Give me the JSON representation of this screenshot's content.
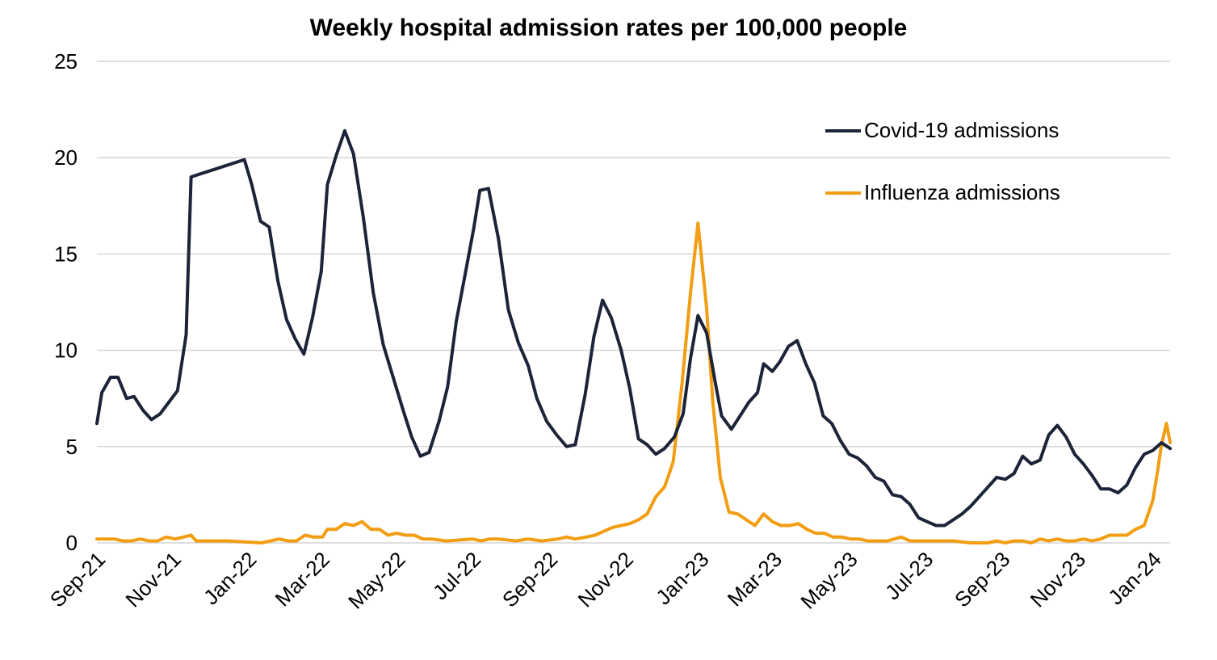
{
  "chart_data": {
    "type": "line",
    "title": "Weekly hospital admission rates per 100,000 people",
    "xlabel": "",
    "ylabel": "",
    "ylim": [
      0,
      25
    ],
    "yticks": [
      0,
      5,
      10,
      15,
      20,
      25
    ],
    "xlim": [
      "2021-09-01",
      "2024-01-15"
    ],
    "xticks": [
      {
        "date": "2021-09-01",
        "label": "Sep-21"
      },
      {
        "date": "2021-11-01",
        "label": "Nov-21"
      },
      {
        "date": "2022-01-01",
        "label": "Jan-22"
      },
      {
        "date": "2022-03-01",
        "label": "Mar-22"
      },
      {
        "date": "2022-05-01",
        "label": "May-22"
      },
      {
        "date": "2022-07-01",
        "label": "Jul-22"
      },
      {
        "date": "2022-09-01",
        "label": "Sep-22"
      },
      {
        "date": "2022-11-01",
        "label": "Nov-22"
      },
      {
        "date": "2023-01-01",
        "label": "Jan-23"
      },
      {
        "date": "2023-03-01",
        "label": "Mar-23"
      },
      {
        "date": "2023-05-01",
        "label": "May-23"
      },
      {
        "date": "2023-07-01",
        "label": "Jul-23"
      },
      {
        "date": "2023-09-01",
        "label": "Sep-23"
      },
      {
        "date": "2023-11-01",
        "label": "Nov-23"
      },
      {
        "date": "2024-01-01",
        "label": "Jan-24"
      }
    ],
    "grid": true,
    "legend_position": "top-right",
    "series": [
      {
        "name": "Covid-19 admissions",
        "color": "#1b2438",
        "points": [
          [
            "2021-09-01",
            6.2
          ],
          [
            "2021-09-05",
            7.8
          ],
          [
            "2021-09-12",
            8.6
          ],
          [
            "2021-09-18",
            8.6
          ],
          [
            "2021-09-25",
            7.5
          ],
          [
            "2021-10-01",
            7.6
          ],
          [
            "2021-10-08",
            6.9
          ],
          [
            "2021-10-15",
            6.4
          ],
          [
            "2021-10-22",
            6.7
          ],
          [
            "2021-10-29",
            7.3
          ],
          [
            "2021-11-05",
            7.9
          ],
          [
            "2021-11-12",
            10.8
          ],
          [
            "2021-11-16",
            19.0
          ],
          [
            "2021-12-29",
            19.9
          ],
          [
            "2022-01-04",
            18.6
          ],
          [
            "2022-01-11",
            16.7
          ],
          [
            "2022-01-18",
            16.4
          ],
          [
            "2022-01-25",
            13.6
          ],
          [
            "2022-02-01",
            11.6
          ],
          [
            "2022-02-08",
            10.6
          ],
          [
            "2022-02-15",
            9.8
          ],
          [
            "2022-02-22",
            11.7
          ],
          [
            "2022-03-01",
            14.1
          ],
          [
            "2022-03-06",
            18.6
          ],
          [
            "2022-03-13",
            20.1
          ],
          [
            "2022-03-20",
            21.4
          ],
          [
            "2022-03-27",
            20.2
          ],
          [
            "2022-04-04",
            16.9
          ],
          [
            "2022-04-12",
            13.0
          ],
          [
            "2022-04-20",
            10.3
          ],
          [
            "2022-04-28",
            8.6
          ],
          [
            "2022-05-06",
            6.9
          ],
          [
            "2022-05-13",
            5.5
          ],
          [
            "2022-05-20",
            4.5
          ],
          [
            "2022-05-27",
            4.7
          ],
          [
            "2022-06-04",
            6.3
          ],
          [
            "2022-06-11",
            8.1
          ],
          [
            "2022-06-18",
            11.5
          ],
          [
            "2022-06-25",
            13.9
          ],
          [
            "2022-07-02",
            16.3
          ],
          [
            "2022-07-07",
            18.3
          ],
          [
            "2022-07-14",
            18.4
          ],
          [
            "2022-07-22",
            15.8
          ],
          [
            "2022-07-30",
            12.1
          ],
          [
            "2022-08-07",
            10.4
          ],
          [
            "2022-08-15",
            9.2
          ],
          [
            "2022-08-22",
            7.5
          ],
          [
            "2022-08-30",
            6.3
          ],
          [
            "2022-09-07",
            5.6
          ],
          [
            "2022-09-15",
            5.0
          ],
          [
            "2022-09-22",
            5.1
          ],
          [
            "2022-09-30",
            7.7
          ],
          [
            "2022-10-07",
            10.7
          ],
          [
            "2022-10-14",
            12.6
          ],
          [
            "2022-10-21",
            11.7
          ],
          [
            "2022-10-29",
            10.0
          ],
          [
            "2022-11-05",
            8.0
          ],
          [
            "2022-11-12",
            5.4
          ],
          [
            "2022-11-19",
            5.1
          ],
          [
            "2022-11-26",
            4.6
          ],
          [
            "2022-12-03",
            4.9
          ],
          [
            "2022-12-11",
            5.5
          ],
          [
            "2022-12-18",
            6.7
          ],
          [
            "2022-12-24",
            9.6
          ],
          [
            "2022-12-30",
            11.8
          ],
          [
            "2023-01-06",
            10.9
          ],
          [
            "2023-01-13",
            8.3
          ],
          [
            "2023-01-18",
            6.6
          ],
          [
            "2023-01-26",
            5.9
          ],
          [
            "2023-02-02",
            6.6
          ],
          [
            "2023-02-09",
            7.3
          ],
          [
            "2023-02-16",
            7.8
          ],
          [
            "2023-02-21",
            9.3
          ],
          [
            "2023-02-28",
            8.9
          ],
          [
            "2023-03-06",
            9.4
          ],
          [
            "2023-03-13",
            10.2
          ],
          [
            "2023-03-20",
            10.5
          ],
          [
            "2023-03-27",
            9.3
          ],
          [
            "2023-04-03",
            8.3
          ],
          [
            "2023-04-10",
            6.6
          ],
          [
            "2023-04-17",
            6.2
          ],
          [
            "2023-04-24",
            5.3
          ],
          [
            "2023-05-01",
            4.6
          ],
          [
            "2023-05-08",
            4.4
          ],
          [
            "2023-05-15",
            4.0
          ],
          [
            "2023-05-22",
            3.4
          ],
          [
            "2023-05-29",
            3.2
          ],
          [
            "2023-06-05",
            2.5
          ],
          [
            "2023-06-12",
            2.4
          ],
          [
            "2023-06-19",
            2.0
          ],
          [
            "2023-06-26",
            1.3
          ],
          [
            "2023-07-03",
            1.1
          ],
          [
            "2023-07-10",
            0.9
          ],
          [
            "2023-07-17",
            0.9
          ],
          [
            "2023-07-24",
            1.2
          ],
          [
            "2023-07-31",
            1.5
          ],
          [
            "2023-08-07",
            1.9
          ],
          [
            "2023-08-14",
            2.4
          ],
          [
            "2023-08-21",
            2.9
          ],
          [
            "2023-08-28",
            3.4
          ],
          [
            "2023-09-04",
            3.3
          ],
          [
            "2023-09-11",
            3.6
          ],
          [
            "2023-09-18",
            4.5
          ],
          [
            "2023-09-25",
            4.1
          ],
          [
            "2023-10-02",
            4.3
          ],
          [
            "2023-10-09",
            5.6
          ],
          [
            "2023-10-16",
            6.1
          ],
          [
            "2023-10-23",
            5.5
          ],
          [
            "2023-10-30",
            4.6
          ],
          [
            "2023-11-06",
            4.1
          ],
          [
            "2023-11-13",
            3.5
          ],
          [
            "2023-11-20",
            2.8
          ],
          [
            "2023-11-27",
            2.8
          ],
          [
            "2023-12-04",
            2.6
          ],
          [
            "2023-12-11",
            3.0
          ],
          [
            "2023-12-18",
            3.9
          ],
          [
            "2023-12-25",
            4.6
          ],
          [
            "2024-01-01",
            4.8
          ],
          [
            "2024-01-08",
            5.2
          ],
          [
            "2024-01-15",
            4.9
          ]
        ]
      },
      {
        "name": "Influenza admissions",
        "color": "#f29d12",
        "points": [
          [
            "2021-09-01",
            0.2
          ],
          [
            "2021-09-08",
            0.2
          ],
          [
            "2021-09-15",
            0.2
          ],
          [
            "2021-09-22",
            0.1
          ],
          [
            "2021-09-29",
            0.1
          ],
          [
            "2021-10-06",
            0.2
          ],
          [
            "2021-10-13",
            0.1
          ],
          [
            "2021-10-20",
            0.1
          ],
          [
            "2021-10-27",
            0.3
          ],
          [
            "2021-11-03",
            0.2
          ],
          [
            "2021-11-10",
            0.3
          ],
          [
            "2021-11-16",
            0.4
          ],
          [
            "2021-11-20",
            0.1
          ],
          [
            "2021-12-15",
            0.1
          ],
          [
            "2022-01-12",
            0.0
          ],
          [
            "2022-01-26",
            0.2
          ],
          [
            "2022-02-02",
            0.1
          ],
          [
            "2022-02-09",
            0.1
          ],
          [
            "2022-02-16",
            0.4
          ],
          [
            "2022-02-23",
            0.3
          ],
          [
            "2022-03-02",
            0.3
          ],
          [
            "2022-03-06",
            0.7
          ],
          [
            "2022-03-13",
            0.7
          ],
          [
            "2022-03-20",
            1.0
          ],
          [
            "2022-03-27",
            0.9
          ],
          [
            "2022-04-03",
            1.1
          ],
          [
            "2022-04-10",
            0.7
          ],
          [
            "2022-04-17",
            0.7
          ],
          [
            "2022-04-24",
            0.4
          ],
          [
            "2022-05-01",
            0.5
          ],
          [
            "2022-05-08",
            0.4
          ],
          [
            "2022-05-15",
            0.4
          ],
          [
            "2022-05-22",
            0.2
          ],
          [
            "2022-05-29",
            0.2
          ],
          [
            "2022-06-10",
            0.1
          ],
          [
            "2022-07-01",
            0.2
          ],
          [
            "2022-07-08",
            0.1
          ],
          [
            "2022-07-15",
            0.2
          ],
          [
            "2022-07-22",
            0.2
          ],
          [
            "2022-08-05",
            0.1
          ],
          [
            "2022-08-15",
            0.2
          ],
          [
            "2022-08-26",
            0.1
          ],
          [
            "2022-09-08",
            0.2
          ],
          [
            "2022-09-15",
            0.3
          ],
          [
            "2022-09-22",
            0.2
          ],
          [
            "2022-10-01",
            0.3
          ],
          [
            "2022-10-08",
            0.4
          ],
          [
            "2022-10-15",
            0.6
          ],
          [
            "2022-10-22",
            0.8
          ],
          [
            "2022-10-29",
            0.9
          ],
          [
            "2022-11-05",
            1.0
          ],
          [
            "2022-11-12",
            1.2
          ],
          [
            "2022-11-19",
            1.5
          ],
          [
            "2022-11-26",
            2.4
          ],
          [
            "2022-12-03",
            2.9
          ],
          [
            "2022-12-10",
            4.2
          ],
          [
            "2022-12-17",
            8.2
          ],
          [
            "2022-12-24",
            13.0
          ],
          [
            "2022-12-30",
            16.6
          ],
          [
            "2023-01-06",
            12.2
          ],
          [
            "2023-01-11",
            7.3
          ],
          [
            "2023-01-17",
            3.4
          ],
          [
            "2023-01-24",
            1.6
          ],
          [
            "2023-01-31",
            1.5
          ],
          [
            "2023-02-07",
            1.2
          ],
          [
            "2023-02-14",
            0.9
          ],
          [
            "2023-02-21",
            1.5
          ],
          [
            "2023-02-28",
            1.1
          ],
          [
            "2023-03-07",
            0.9
          ],
          [
            "2023-03-14",
            0.9
          ],
          [
            "2023-03-21",
            1.0
          ],
          [
            "2023-03-28",
            0.7
          ],
          [
            "2023-04-04",
            0.5
          ],
          [
            "2023-04-11",
            0.5
          ],
          [
            "2023-04-18",
            0.3
          ],
          [
            "2023-04-25",
            0.3
          ],
          [
            "2023-05-02",
            0.2
          ],
          [
            "2023-05-09",
            0.2
          ],
          [
            "2023-05-16",
            0.1
          ],
          [
            "2023-06-01",
            0.1
          ],
          [
            "2023-06-12",
            0.3
          ],
          [
            "2023-06-19",
            0.1
          ],
          [
            "2023-06-26",
            0.1
          ],
          [
            "2023-07-10",
            0.1
          ],
          [
            "2023-07-24",
            0.1
          ],
          [
            "2023-08-07",
            0.0
          ],
          [
            "2023-08-21",
            0.0
          ],
          [
            "2023-08-28",
            0.1
          ],
          [
            "2023-09-04",
            0.0
          ],
          [
            "2023-09-11",
            0.1
          ],
          [
            "2023-09-18",
            0.1
          ],
          [
            "2023-09-25",
            0.0
          ],
          [
            "2023-10-02",
            0.2
          ],
          [
            "2023-10-09",
            0.1
          ],
          [
            "2023-10-16",
            0.2
          ],
          [
            "2023-10-23",
            0.1
          ],
          [
            "2023-10-30",
            0.1
          ],
          [
            "2023-11-06",
            0.2
          ],
          [
            "2023-11-13",
            0.1
          ],
          [
            "2023-11-20",
            0.2
          ],
          [
            "2023-11-27",
            0.4
          ],
          [
            "2023-12-04",
            0.4
          ],
          [
            "2023-12-11",
            0.4
          ],
          [
            "2023-12-18",
            0.7
          ],
          [
            "2023-12-25",
            0.9
          ],
          [
            "2024-01-01",
            2.2
          ],
          [
            "2024-01-05",
            3.8
          ],
          [
            "2024-01-08",
            5.1
          ],
          [
            "2024-01-12",
            6.2
          ],
          [
            "2024-01-15",
            5.2
          ]
        ]
      }
    ]
  }
}
